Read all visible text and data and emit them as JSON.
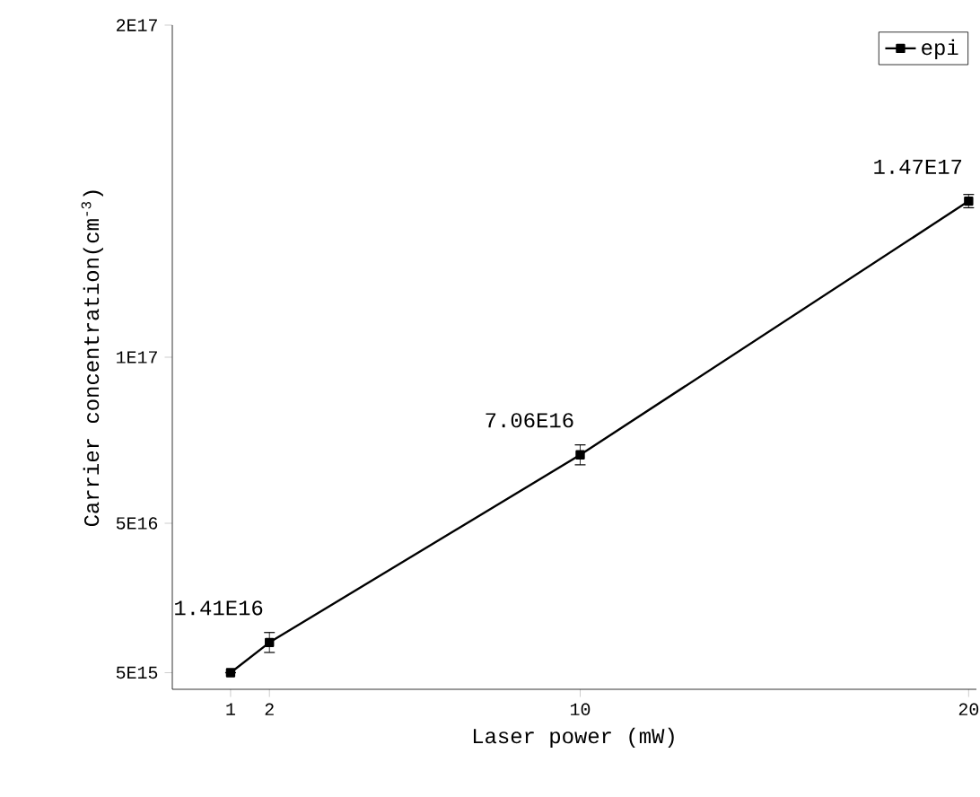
{
  "chart_data": {
    "type": "line",
    "xlabel": "Laser power (mW)",
    "ylabel": "Carrier concentration(cm$^{-3}$)",
    "x": [
      1,
      2,
      10,
      20
    ],
    "series": [
      {
        "name": "epi",
        "color": "#000000",
        "values": [
          5000000000000000.0,
          1.41e+16,
          7.06e+16,
          1.47e+17
        ],
        "errors": [
          null,
          3000000000000000.0,
          3000000000000000.0,
          2000000000000000.0
        ],
        "value_labels": [
          null,
          "1.41E16",
          "7.06E16",
          "1.47E17"
        ]
      }
    ],
    "xlim": [
      -0.5,
      20.2
    ],
    "xticks": [
      1,
      2,
      10,
      20
    ],
    "ylim": [
      0,
      2e+17
    ],
    "yticks": [
      {
        "value": 5000000000000000.0,
        "label": "5E15"
      },
      {
        "value": 5e+16,
        "label": "5E16"
      },
      {
        "value": 1e+17,
        "label": "1E17"
      },
      {
        "value": 2e+17,
        "label": "2E17"
      }
    ],
    "grid": false,
    "legend": "top right",
    "marker": "square",
    "line_style": "solid"
  }
}
